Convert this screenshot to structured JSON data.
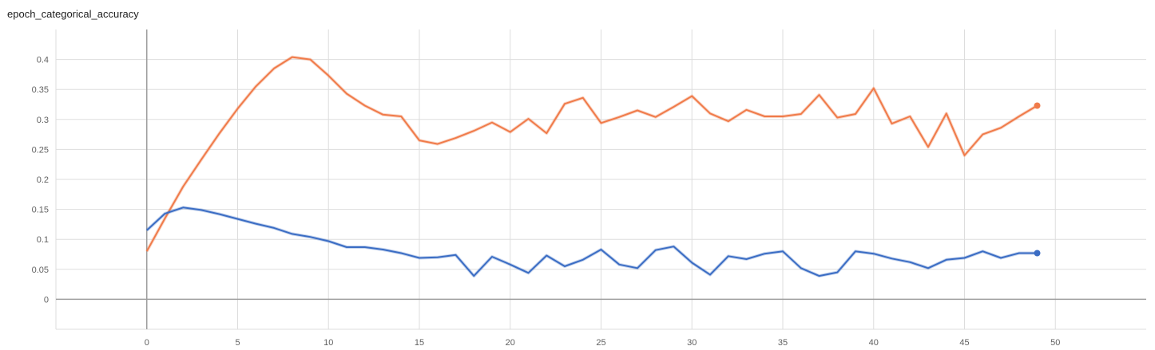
{
  "chart_data": {
    "type": "line",
    "title": "epoch_categorical_accuracy",
    "xlabel": "",
    "ylabel": "",
    "xlim": [
      -5,
      55
    ],
    "ylim": [
      -0.05,
      0.45
    ],
    "x_ticks": [
      0,
      5,
      10,
      15,
      20,
      25,
      30,
      35,
      40,
      45,
      50
    ],
    "y_ticks": [
      0,
      0.05,
      0.1,
      0.15,
      0.2,
      0.25,
      0.3,
      0.35,
      0.4
    ],
    "y_tick_labels": [
      "0",
      "0.05",
      "0.1",
      "0.15",
      "0.2",
      "0.25",
      "0.3",
      "0.35",
      "0.4"
    ],
    "grid": true,
    "legend": "none",
    "series": [
      {
        "color": "#f07b4a",
        "x": [
          0,
          1,
          2,
          3,
          4,
          5,
          6,
          7,
          8,
          9,
          10,
          11,
          12,
          13,
          14,
          15,
          16,
          17,
          18,
          19,
          20,
          21,
          22,
          23,
          24,
          25,
          26,
          27,
          28,
          29,
          30,
          31,
          32,
          33,
          34,
          35,
          36,
          37,
          38,
          39,
          40,
          41,
          42,
          43,
          44,
          45,
          46,
          47,
          48,
          49
        ],
        "values": [
          0.08,
          0.135,
          0.188,
          0.233,
          0.277,
          0.318,
          0.355,
          0.385,
          0.404,
          0.4,
          0.373,
          0.343,
          0.323,
          0.308,
          0.305,
          0.265,
          0.259,
          0.269,
          0.281,
          0.295,
          0.279,
          0.301,
          0.277,
          0.326,
          0.336,
          0.294,
          0.304,
          0.315,
          0.304,
          0.321,
          0.339,
          0.31,
          0.297,
          0.316,
          0.305,
          0.305,
          0.309,
          0.341,
          0.303,
          0.309,
          0.352,
          0.293,
          0.305,
          0.254,
          0.31,
          0.24,
          0.275,
          0.286,
          0.305,
          0.323
        ]
      },
      {
        "color": "#3b6dc4",
        "x": [
          0,
          1,
          2,
          3,
          4,
          5,
          6,
          7,
          8,
          9,
          10,
          11,
          12,
          13,
          14,
          15,
          16,
          17,
          18,
          19,
          20,
          21,
          22,
          23,
          24,
          25,
          26,
          27,
          28,
          29,
          30,
          31,
          32,
          33,
          34,
          35,
          36,
          37,
          38,
          39,
          40,
          41,
          42,
          43,
          44,
          45,
          46,
          47,
          48,
          49
        ],
        "values": [
          0.115,
          0.143,
          0.153,
          0.149,
          0.142,
          0.134,
          0.126,
          0.119,
          0.109,
          0.104,
          0.097,
          0.087,
          0.087,
          0.083,
          0.077,
          0.069,
          0.07,
          0.074,
          0.039,
          0.071,
          0.058,
          0.044,
          0.073,
          0.055,
          0.066,
          0.083,
          0.058,
          0.052,
          0.082,
          0.088,
          0.061,
          0.041,
          0.072,
          0.067,
          0.076,
          0.08,
          0.052,
          0.039,
          0.045,
          0.08,
          0.076,
          0.068,
          0.062,
          0.052,
          0.066,
          0.069,
          0.08,
          0.069,
          0.077,
          0.077
        ]
      }
    ]
  }
}
